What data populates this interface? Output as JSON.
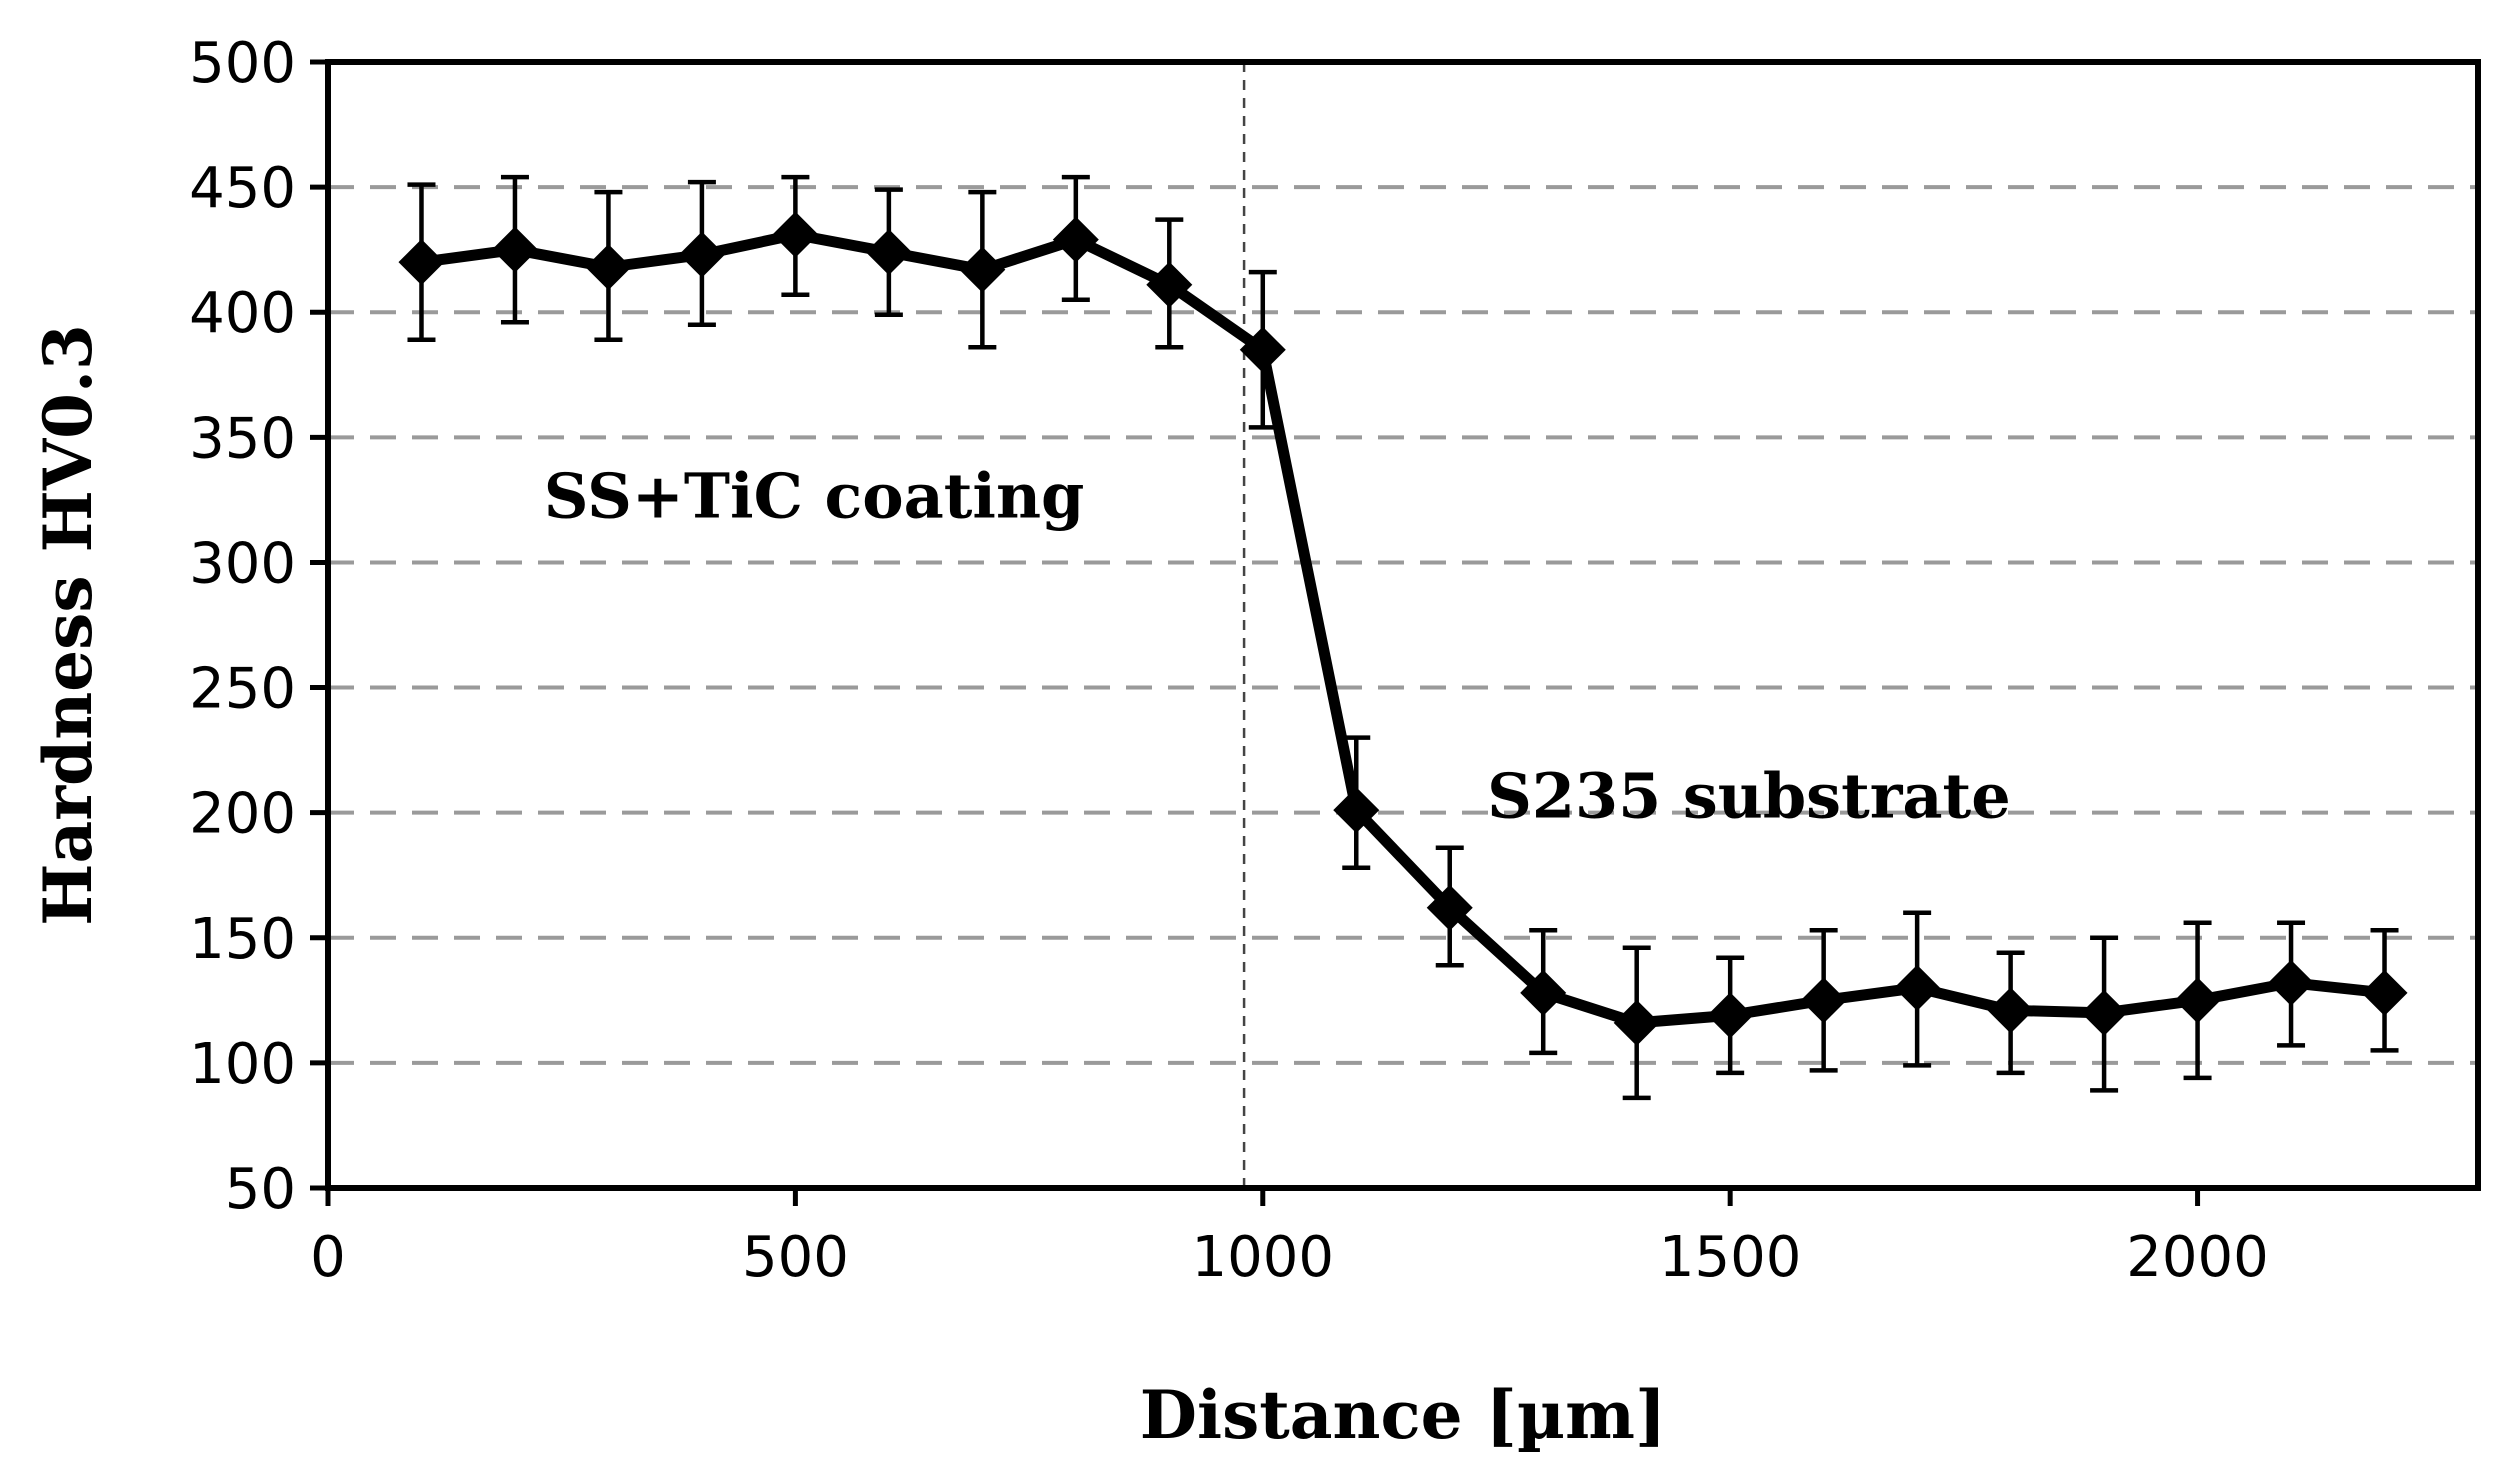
{
  "chart_data": {
    "type": "line",
    "title": "",
    "xlabel": "Distance [µm]",
    "ylabel": "Hardness HV0.3",
    "xlim": [
      0,
      2300
    ],
    "ylim": [
      50,
      500
    ],
    "x_ticks": [
      0,
      500,
      1000,
      1500,
      2000
    ],
    "y_ticks": [
      50,
      100,
      150,
      200,
      250,
      300,
      350,
      400,
      450,
      500
    ],
    "grid": "horizontal dashed",
    "reference_line_x": 980,
    "annotations": [
      {
        "text": "SS+TiC coating",
        "x": 520,
        "y": 318
      },
      {
        "text": "S235 substrate",
        "x": 1520,
        "y": 198
      }
    ],
    "series": [
      {
        "name": "Hardness",
        "marker": "diamond",
        "color": "#000000",
        "x": [
          100,
          200,
          300,
          400,
          500,
          600,
          700,
          800,
          900,
          1000,
          1100,
          1200,
          1300,
          1400,
          1500,
          1600,
          1700,
          1800,
          1900,
          2000,
          2100,
          2200
        ],
        "y": [
          420,
          425,
          418,
          423,
          431,
          424,
          417,
          429,
          411,
          385,
          201,
          162,
          128,
          116,
          119,
          125,
          130,
          121,
          120,
          125,
          132,
          128
        ],
        "error_upper": [
          451,
          454,
          448,
          452,
          454,
          449,
          448,
          454,
          437,
          416,
          230,
          186,
          153,
          146,
          142,
          153,
          160,
          144,
          150,
          156,
          156,
          153
        ],
        "error_lower": [
          389,
          396,
          389,
          395,
          407,
          399,
          386,
          405,
          386,
          354,
          178,
          139,
          104,
          86,
          96,
          97,
          99,
          96,
          89,
          94,
          107,
          105
        ]
      }
    ]
  }
}
